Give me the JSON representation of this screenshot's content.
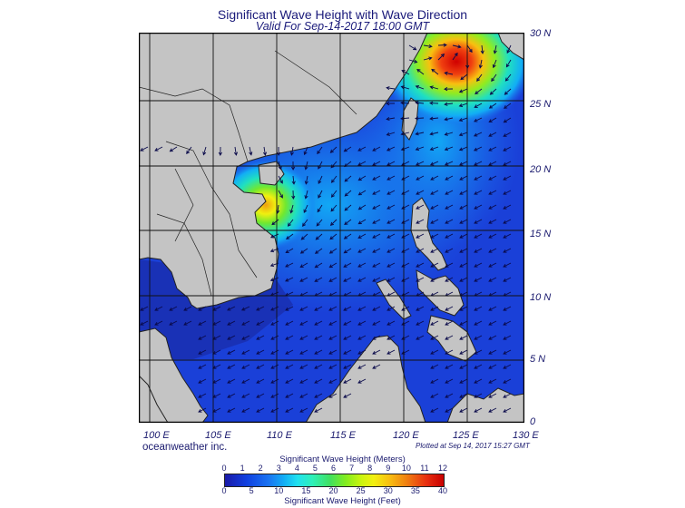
{
  "title": "Significant Wave Height with Wave Direction",
  "subtitle": "Valid For Sep-14-2017 18:00 GMT",
  "lat_labels": [
    "30 N",
    "25 N",
    "20 N",
    "15 N",
    "10 N",
    "5 N",
    "0"
  ],
  "lon_labels": [
    "100 E",
    "105 E",
    "110 E",
    "115 E",
    "120 E",
    "125 E",
    "130 E"
  ],
  "brand": "oceanweather inc.",
  "plotted": "Plotted at Sep 14, 2017 15:27 GMT",
  "legend": {
    "meters_title": "Significant Wave Height (Meters)",
    "feet_title": "Significant Wave Height (Feet)",
    "meters_ticks": [
      "0",
      "1",
      "2",
      "3",
      "4",
      "5",
      "6",
      "7",
      "8",
      "9",
      "10",
      "11",
      "12"
    ],
    "feet_ticks": [
      "0",
      "5",
      "10",
      "15",
      "20",
      "25",
      "30",
      "35",
      "40"
    ]
  },
  "colors": {
    "land": "#c4c4c4",
    "calm": "#1a2fb0",
    "peak": "#e00000",
    "grid": "#111111"
  }
}
